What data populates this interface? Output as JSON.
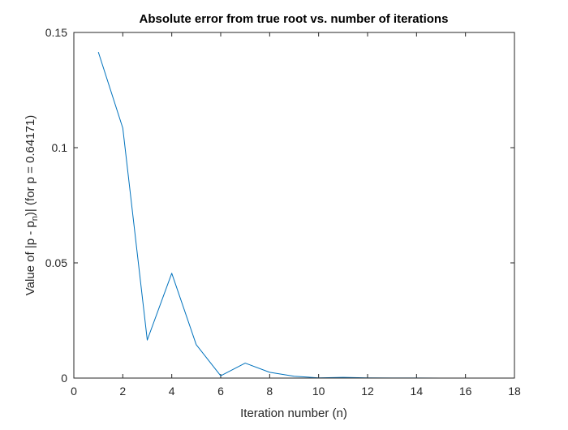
{
  "chart_data": {
    "type": "line",
    "title": "Absolute error from true root vs. number of iterations",
    "xlabel": "Iteration number (n)",
    "ylabel": {
      "prefix": "Value of |p - p",
      "subscript": "n",
      "suffix": ")| (for p = 0.64171)"
    },
    "xlim": [
      0,
      18
    ],
    "ylim": [
      0,
      0.15
    ],
    "xticks": [
      0,
      2,
      4,
      6,
      8,
      10,
      12,
      14,
      16,
      18
    ],
    "xtick_labels": [
      "0",
      "2",
      "4",
      "6",
      "8",
      "10",
      "12",
      "14",
      "16",
      "18"
    ],
    "yticks": [
      0,
      0.05,
      0.1,
      0.15
    ],
    "ytick_labels": [
      "0",
      "0.05",
      "0.1",
      "0.15"
    ],
    "grid": false,
    "series": [
      {
        "color": "#0072BD",
        "x": [
          1,
          2,
          3,
          4,
          5,
          6,
          7,
          8,
          9,
          10,
          11,
          12,
          13,
          14,
          15,
          16,
          17
        ],
        "y": [
          0.1415,
          0.1085,
          0.0165,
          0.0455,
          0.0145,
          0.001,
          0.0065,
          0.0025,
          0.0008,
          0.0001,
          0.0003,
          0.0001,
          5e-05,
          3e-05,
          2e-05,
          1e-05,
          5e-06
        ]
      }
    ]
  }
}
